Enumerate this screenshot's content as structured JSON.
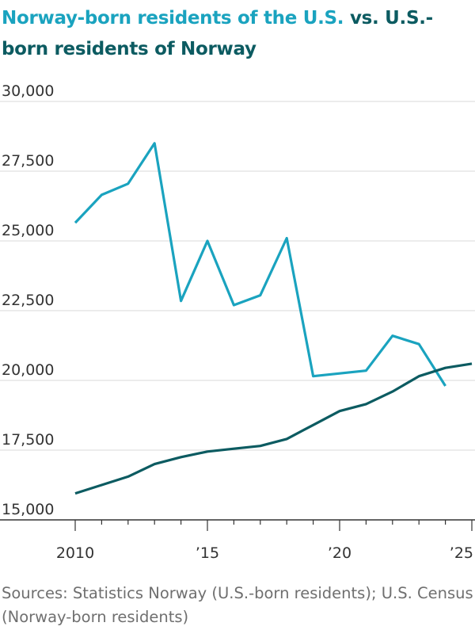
{
  "title": {
    "part1": "Norway-born residents of the U.S.",
    "part2": " vs. U.S.-born residents of Norway"
  },
  "colors": {
    "norway_born_us": "#1aa3bf",
    "us_born_norway": "#0c5b61",
    "grid": "#d9d9d9",
    "axis_text": "#333333",
    "source_text": "#6f6f6f"
  },
  "source": "Sources: Statistics Norway (U.S.-born residents); U.S. Census (Norway-born residents)",
  "chart_data": {
    "type": "line",
    "x_tick_labels": [
      "2010",
      "’15",
      "’20",
      "’25"
    ],
    "x_ticks": [
      2010,
      2015,
      2020,
      2025
    ],
    "y_tick_labels": [
      "30,000",
      "27,500",
      "25,000",
      "22,500",
      "20,000",
      "17,500",
      "15,000"
    ],
    "y_ticks": [
      30000,
      27500,
      25000,
      22500,
      20000,
      17500,
      15000
    ],
    "xlim": [
      2010,
      2025
    ],
    "ylim": [
      15000,
      30000
    ],
    "grid": true,
    "series": [
      {
        "name": "Norway-born residents of the U.S.",
        "color": "#1aa3bf",
        "x": [
          2010,
          2011,
          2012,
          2013,
          2014,
          2015,
          2016,
          2017,
          2018,
          2019,
          2020,
          2021,
          2022,
          2023,
          2024
        ],
        "values": [
          25650,
          26650,
          27050,
          28500,
          22850,
          25000,
          22700,
          23050,
          25100,
          20150,
          20250,
          20350,
          21600,
          21300,
          19800
        ]
      },
      {
        "name": "U.S.-born residents of Norway",
        "color": "#0c5b61",
        "x": [
          2010,
          2011,
          2012,
          2013,
          2014,
          2015,
          2016,
          2017,
          2018,
          2019,
          2020,
          2021,
          2022,
          2023,
          2024,
          2025
        ],
        "values": [
          15950,
          16250,
          16550,
          17000,
          17250,
          17450,
          17550,
          17650,
          17900,
          18400,
          18900,
          19150,
          19600,
          20150,
          20450,
          20600
        ]
      }
    ]
  }
}
